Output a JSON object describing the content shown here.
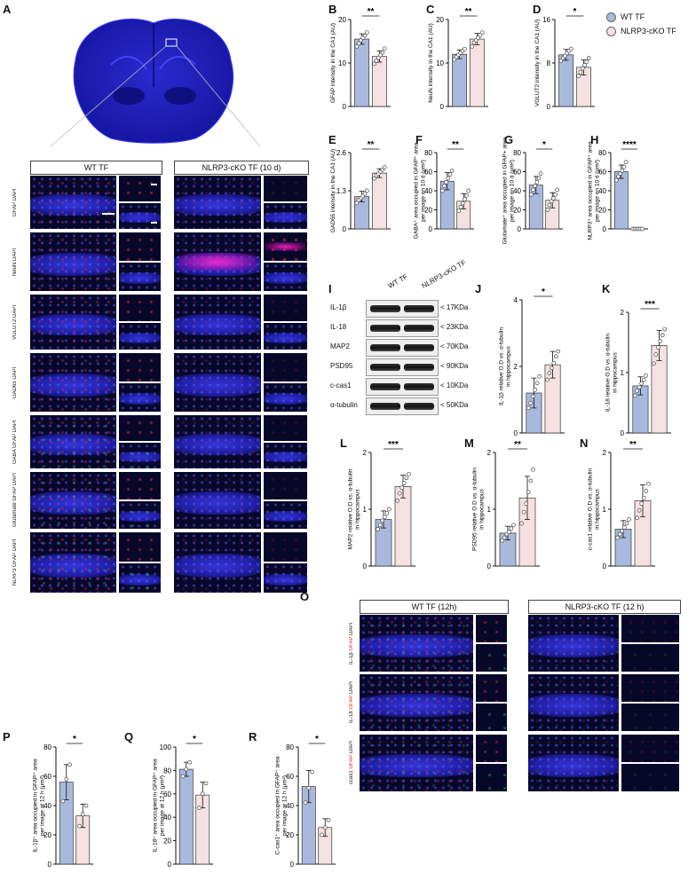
{
  "panel_letters": {
    "A": "A",
    "B": "B",
    "C": "C",
    "D": "D",
    "E": "E",
    "F": "F",
    "G": "G",
    "H": "H",
    "I": "I",
    "J": "J",
    "K": "K",
    "L": "L",
    "M": "M",
    "N": "N",
    "O": "O",
    "P": "P",
    "Q": "Q",
    "R": "R"
  },
  "legend": {
    "wt": "WT TF",
    "ko": "NLRP3-cKO TF",
    "wt_color": "#a9b9dd",
    "ko_color": "#f5e1e1"
  },
  "columns_A": {
    "wt": "WT TF",
    "ko": "NLRP3-cKO TF (10 d)"
  },
  "rows_A": [
    {
      "marker": "GFAP",
      "dapi": "DAPI"
    },
    {
      "marker": "NeuN",
      "dapi": "DAPI"
    },
    {
      "marker": "VGLUT2",
      "dapi": "DAPI"
    },
    {
      "marker": "GAD65",
      "dapi": "DAPI"
    },
    {
      "marker": "GABA",
      "marker2": "GFAP",
      "dapi": "DAPI"
    },
    {
      "marker": "Glutamate",
      "marker2": "GFAP",
      "dapi": "DAPI"
    },
    {
      "marker": "NLRP3",
      "marker2": "GFAP",
      "dapi": "DAPI"
    }
  ],
  "columns_O": {
    "wt": "WT TF (12h)",
    "ko": "NLRP3-cKO TF (12 h)"
  },
  "rows_O": [
    {
      "marker": "IL-1β",
      "marker2": "GFAP",
      "dapi": "DAPI"
    },
    {
      "marker": "IL-18",
      "marker2": "GFAP",
      "dapi": "DAPI"
    },
    {
      "marker": "ccas1",
      "marker2": "GFAP",
      "dapi": "DAPI"
    }
  ],
  "blot": {
    "lanes": [
      "WT TF",
      "NLRP3-cKO TF"
    ],
    "proteins": [
      {
        "name": "IL-1β",
        "kda": "< 17KDa"
      },
      {
        "name": "IL-18",
        "kda": "< 23KDa"
      },
      {
        "name": "MAP2",
        "kda": "< 70KDa"
      },
      {
        "name": "PSD95",
        "kda": "< 90KDa"
      },
      {
        "name": "c-cas1",
        "kda": "< 10KDa"
      },
      {
        "name": "α-tubulin",
        "kda": "< 50KDa"
      }
    ]
  },
  "chart_data": [
    {
      "id": "B",
      "type": "bar",
      "categories": [
        "WT TF",
        "NLRP3-cKO TF"
      ],
      "values": [
        15.5,
        11.5
      ],
      "err": [
        1.2,
        1.3
      ],
      "points": [
        [
          13.8,
          14.5,
          15.2,
          15.8,
          16.3,
          17.0
        ],
        [
          9.8,
          10.5,
          11.2,
          11.8,
          12.4,
          13.3
        ]
      ],
      "ylabel": "GFAP intensity in the CA1 (AU)",
      "ylim": [
        0,
        20
      ],
      "ticks": [
        0,
        10,
        20
      ],
      "sig": "**"
    },
    {
      "id": "C",
      "type": "bar",
      "categories": [
        "WT TF",
        "NLRP3-cKO TF"
      ],
      "values": [
        12,
        15.5
      ],
      "err": [
        1.0,
        1.3
      ],
      "points": [
        [
          10.8,
          11.4,
          11.9,
          12.3,
          12.8,
          13.2
        ],
        [
          13.8,
          14.7,
          15.2,
          15.8,
          16.4,
          17.0
        ]
      ],
      "ylabel": "NeuN intensity in the CA1 (AU)",
      "ylim": [
        0,
        20
      ],
      "ticks": [
        0,
        10,
        20
      ],
      "sig": "**"
    },
    {
      "id": "D",
      "type": "bar",
      "categories": [
        "WT TF",
        "NLRP3-cKO TF"
      ],
      "values": [
        9.5,
        7.2
      ],
      "err": [
        1.0,
        1.4
      ],
      "points": [
        [
          8.4,
          8.9,
          9.3,
          9.8,
          10.2,
          10.6
        ],
        [
          5.6,
          6.3,
          7.0,
          7.6,
          8.2,
          8.9
        ]
      ],
      "ylabel": "VGLUT2 intensity in the CA1 (AU)",
      "ylim": [
        0,
        16
      ],
      "ticks": [
        0,
        8,
        16
      ],
      "sig": "*"
    },
    {
      "id": "E",
      "type": "bar",
      "categories": [
        "WT TF",
        "NLRP3-cKO TF"
      ],
      "values": [
        1.1,
        1.9
      ],
      "err": [
        0.18,
        0.15
      ],
      "points": [
        [
          0.88,
          0.98,
          1.05,
          1.12,
          1.2,
          1.3
        ],
        [
          1.72,
          1.82,
          1.88,
          1.95,
          2.02,
          2.1
        ]
      ],
      "ylabel": "GAD65 intensity in the CA1 (AU)",
      "ylim": [
        0,
        2.6
      ],
      "ticks": [
        0,
        1.3,
        2.6
      ],
      "sig": "**"
    },
    {
      "id": "F",
      "type": "bar",
      "categories": [
        "WT TF",
        "NLRP3-cKO TF"
      ],
      "values": [
        50,
        29
      ],
      "err": [
        9,
        8
      ],
      "points": [
        [
          40,
          45,
          49,
          53,
          57,
          61
        ],
        [
          19,
          23,
          27,
          31,
          35,
          40
        ]
      ],
      "ylabel": "GABA⁺ area occupied in GFAP⁺ area per image on 10 d (μm²)",
      "ylim": [
        0,
        80
      ],
      "ticks": [
        0,
        20,
        40,
        60,
        80
      ],
      "sig": "**"
    },
    {
      "id": "G",
      "type": "bar",
      "categories": [
        "WT TF",
        "NLRP3-cKO TF"
      ],
      "values": [
        46,
        30
      ],
      "err": [
        9,
        8
      ],
      "points": [
        [
          36,
          41,
          45,
          49,
          53,
          58
        ],
        [
          20,
          25,
          29,
          32,
          36,
          41
        ]
      ],
      "ylabel": "Glutamate⁺ area occupied in GFAP+ area per image on 10 d (μm²)",
      "ylim": [
        0,
        80
      ],
      "ticks": [
        0,
        20,
        40,
        60,
        80
      ],
      "sig": "*"
    },
    {
      "id": "H",
      "type": "bar",
      "categories": [
        "WT TF",
        "NLRP3-cKO TF"
      ],
      "values": [
        60,
        0
      ],
      "err": [
        7,
        0
      ],
      "points": [
        [
          51,
          55,
          58,
          61,
          65,
          70
        ],
        [
          0,
          0,
          0,
          0,
          0,
          0
        ]
      ],
      "ylabel": "NLRP3⁺ area occupied in GFAP⁺ area per image on 10 d (μm²)",
      "ylim": [
        0,
        80
      ],
      "ticks": [
        0,
        20,
        40,
        60,
        80
      ],
      "sig": "****"
    },
    {
      "id": "J",
      "type": "bar",
      "categories": [
        "WT TF",
        "NLRP3-cKO TF"
      ],
      "values": [
        1.2,
        2.05
      ],
      "err": [
        0.45,
        0.4
      ],
      "points": [
        [
          0.75,
          0.9,
          1.1,
          1.3,
          1.5,
          1.7
        ],
        [
          1.6,
          1.8,
          1.95,
          2.1,
          2.3,
          2.45
        ]
      ],
      "ylabel": "IL-1β relative O.D vs. α-tubulin in hippocampus",
      "ylim": [
        0,
        4
      ],
      "ticks": [
        0,
        2,
        4
      ],
      "sig": "*"
    },
    {
      "id": "K",
      "type": "bar",
      "categories": [
        "WT TF",
        "NLRP3-cKO TF"
      ],
      "values": [
        0.78,
        1.45
      ],
      "err": [
        0.15,
        0.25
      ],
      "points": [
        [
          0.62,
          0.7,
          0.76,
          0.82,
          0.88,
          0.95
        ],
        [
          1.15,
          1.3,
          1.42,
          1.52,
          1.62,
          1.72
        ]
      ],
      "ylabel": "IL-18 relative O.D vs. α-tubulin in hippocampus",
      "ylim": [
        0,
        2
      ],
      "ticks": [
        0,
        1,
        2
      ],
      "sig": "***"
    },
    {
      "id": "L",
      "type": "bar",
      "categories": [
        "WT TF",
        "NLRP3-cKO TF"
      ],
      "values": [
        0.82,
        1.4
      ],
      "err": [
        0.15,
        0.2
      ],
      "points": [
        [
          0.65,
          0.72,
          0.8,
          0.86,
          0.93,
          1.0
        ],
        [
          1.15,
          1.28,
          1.38,
          1.46,
          1.55,
          1.62
        ]
      ],
      "ylabel": "MAP2 relative O.D vs. α-tubulin in hippocampus",
      "ylim": [
        0,
        2
      ],
      "ticks": [
        0,
        1,
        2
      ],
      "sig": "***"
    },
    {
      "id": "M",
      "type": "bar",
      "categories": [
        "WT TF",
        "NLRP3-cKO TF"
      ],
      "values": [
        0.58,
        1.2
      ],
      "err": [
        0.12,
        0.38
      ],
      "points": [
        [
          0.45,
          0.5,
          0.56,
          0.6,
          0.66,
          0.72
        ],
        [
          0.75,
          0.95,
          1.1,
          1.3,
          1.5,
          1.7
        ]
      ],
      "ylabel": "PSD95 relative O.D vs. α-tubulin in hippocampus",
      "ylim": [
        0,
        2
      ],
      "ticks": [
        0,
        1,
        2
      ],
      "sig": "**"
    },
    {
      "id": "N",
      "type": "bar",
      "categories": [
        "WT TF",
        "NLRP3-cKO TF"
      ],
      "values": [
        0.65,
        1.15
      ],
      "err": [
        0.15,
        0.28
      ],
      "points": [
        [
          0.5,
          0.56,
          0.62,
          0.68,
          0.75,
          0.82
        ],
        [
          0.85,
          0.98,
          1.1,
          1.2,
          1.32,
          1.45
        ]
      ],
      "ylabel": "c-cas1 relative O.D vs. α-tubulin in hippocampus",
      "ylim": [
        0,
        2
      ],
      "ticks": [
        0,
        1,
        2
      ],
      "sig": "**"
    },
    {
      "id": "P",
      "type": "bar",
      "categories": [
        "WT TF",
        "NLRP3-cKO TF"
      ],
      "values": [
        56,
        33
      ],
      "err": [
        12,
        8
      ],
      "points": [
        [
          43,
          58,
          68
        ],
        [
          26,
          34,
          40
        ]
      ],
      "ylabel": "IL-1β⁺ area occupied in GFAP⁺ area per image at 12 h (μm²)",
      "ylim": [
        0,
        80
      ],
      "ticks": [
        0,
        20,
        40,
        60,
        80
      ],
      "sig": "*"
    },
    {
      "id": "Q",
      "type": "bar",
      "categories": [
        "WT TF",
        "NLRP3-cKO TF"
      ],
      "values": [
        81,
        59
      ],
      "err": [
        6,
        11
      ],
      "points": [
        [
          75,
          81,
          87
        ],
        [
          48,
          60,
          69
        ]
      ],
      "ylabel": "IL-18⁺ area occupied in GFAP⁺ area per image at 12 h (μm²)",
      "ylim": [
        0,
        100
      ],
      "ticks": [
        0,
        20,
        40,
        60,
        80,
        100
      ],
      "sig": "*"
    },
    {
      "id": "R",
      "type": "bar",
      "categories": [
        "WT TF",
        "NLRP3-cKO TF"
      ],
      "values": [
        53,
        25
      ],
      "err": [
        11,
        6
      ],
      "points": [
        [
          42,
          52,
          63
        ],
        [
          20,
          25,
          30
        ]
      ],
      "ylabel": "C-cas1⁺ area occupied in GFAP⁺ area per image at 12 h (μm²)",
      "ylim": [
        0,
        80
      ],
      "ticks": [
        0,
        20,
        40,
        60,
        80
      ],
      "sig": "*"
    }
  ]
}
